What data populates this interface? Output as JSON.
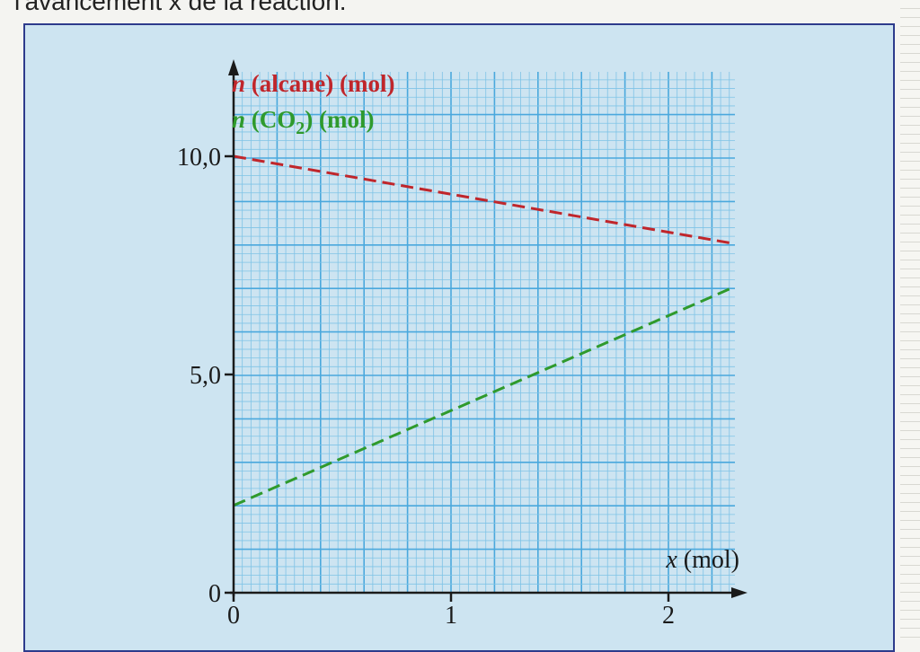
{
  "page": {
    "caption": "l'avancement x de la réaction."
  },
  "colors": {
    "frame_border": "#2d3b8c",
    "panel_background": "#cde4f1",
    "grid_minor": "#7fc3e6",
    "grid_major": "#4aa8dd",
    "axis": "#1a1a1a",
    "alcane": "#c0262b",
    "co2": "#2f9a2c"
  },
  "chart_data": {
    "type": "line",
    "xlabel": "x (mol)",
    "xlim": [
      0,
      2.3
    ],
    "ylim": [
      0,
      12
    ],
    "x_ticks": [
      {
        "value": 0,
        "label": "0"
      },
      {
        "value": 1,
        "label": "1"
      },
      {
        "value": 2,
        "label": "2"
      }
    ],
    "y_ticks": [
      {
        "value": 0,
        "label": "0"
      },
      {
        "value": 5,
        "label": "5,0"
      },
      {
        "value": 10,
        "label": "10,0"
      }
    ],
    "grid": true,
    "legend_position": "top-left",
    "series": [
      {
        "name": "n (alcane) (mol)",
        "legend": {
          "var": "n",
          "text": " (alcane)  (mol)"
        },
        "style": "dashed",
        "color": "#c0262b",
        "x": [
          0,
          2.3
        ],
        "y": [
          10.0,
          8.0
        ]
      },
      {
        "name": "n (CO2) (mol)",
        "legend": {
          "var": "n",
          "pre": " (CO",
          "sub": "2",
          "post": ")  (mol)"
        },
        "style": "dashed",
        "color": "#2f9a2c",
        "x": [
          0,
          2.3
        ],
        "y": [
          2.0,
          7.0
        ]
      }
    ]
  }
}
